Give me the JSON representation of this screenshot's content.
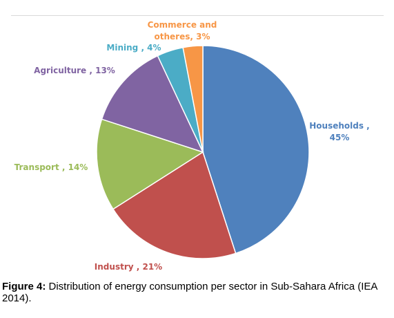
{
  "chart_data": {
    "type": "pie",
    "slices": [
      {
        "name": "Households",
        "value": 45,
        "label_lines": [
          "Households ,",
          "45%"
        ],
        "color": "#4f81bd"
      },
      {
        "name": "Industry",
        "value": 21,
        "label_lines": [
          "Industry , 21%"
        ],
        "color": "#c0504d"
      },
      {
        "name": "Transport",
        "value": 14,
        "label_lines": [
          "Transport , 14%"
        ],
        "color": "#9bbb59"
      },
      {
        "name": "Agriculture",
        "value": 13,
        "label_lines": [
          "Agriculture , 13%"
        ],
        "color": "#8064a2"
      },
      {
        "name": "Mining",
        "value": 4,
        "label_lines": [
          "Mining , 4%"
        ],
        "color": "#4bacc6"
      },
      {
        "name": "Commerce and otheres",
        "value": 3,
        "label_lines": [
          "Commerce and",
          "otheres, 3%"
        ],
        "color": "#f79646"
      }
    ]
  },
  "caption": {
    "figure_number": "Figure 4:",
    "text": " Distribution of energy consumption per sector in Sub-Sahara Africa (IEA 2014)."
  }
}
